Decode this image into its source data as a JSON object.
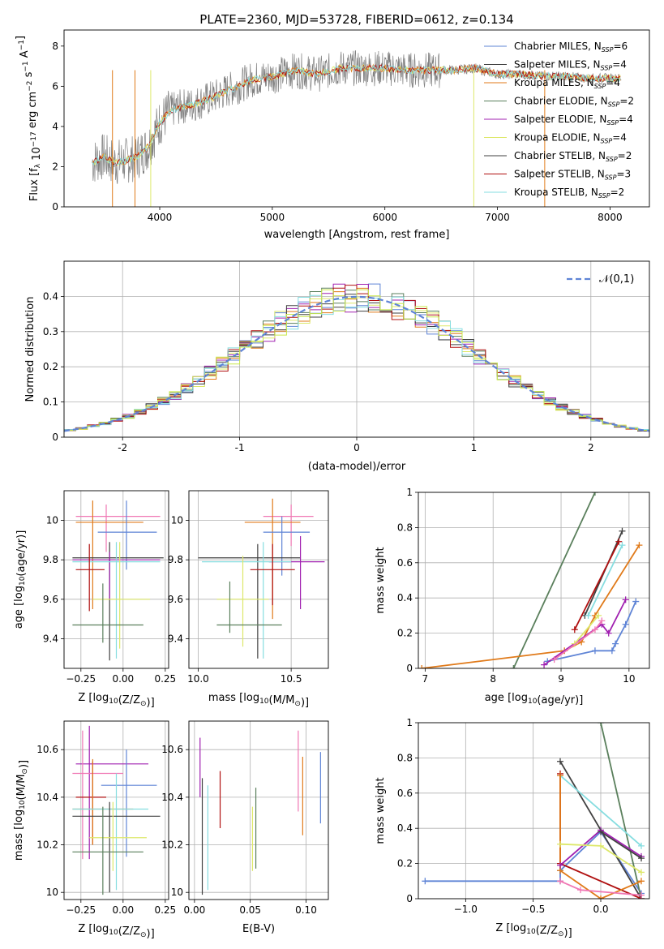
{
  "title": "PLATE=2360, MJD=53728, FIBERID=0612, z=0.134",
  "colors": {
    "royal": "#5f84d6",
    "orange": "#e07a1a",
    "green": "#5a7f5c",
    "purple": "#a020b0",
    "yellow": "#dde86a",
    "dark": "#404040",
    "red": "#b01010",
    "cyan": "#86dde0",
    "pink": "#f078b4",
    "lime": "#c8e84a",
    "grey": "#808080"
  },
  "chart_data": [
    {
      "panel": "spectrum",
      "type": "line",
      "xlabel": "wavelength [Angstrom, rest frame]",
      "ylabel": "Flux [f_λ 10^-17 erg cm^-2 s^-1 A^-1]",
      "xlim": [
        3150,
        8350
      ],
      "ylim": [
        0,
        8.8
      ],
      "xticks": [
        4000,
        5000,
        6000,
        7000,
        8000
      ],
      "yticks": [
        0,
        2,
        4,
        6,
        8
      ],
      "legend": [
        {
          "label": "Chabrier MILES, N",
          "sub": "SSP",
          "tail": "=6",
          "color": "royal"
        },
        {
          "label": "Salpeter MILES, N",
          "sub": "SSP",
          "tail": "=4",
          "color": "dark"
        },
        {
          "label": "Kroupa MILES, N",
          "sub": "SSP",
          "tail": "=4",
          "color": "orange"
        },
        {
          "label": "Chabrier ELODIE, N",
          "sub": "SSP",
          "tail": "=2",
          "color": "green"
        },
        {
          "label": "Salpeter ELODIE, N",
          "sub": "SSP",
          "tail": "=4",
          "color": "purple"
        },
        {
          "label": "Kroupa ELODIE, N",
          "sub": "SSP",
          "tail": "=4",
          "color": "yellow"
        },
        {
          "label": "Chabrier STELIB, N",
          "sub": "SSP",
          "tail": "=2",
          "color": "dark"
        },
        {
          "label": "Salpeter STELIB, N",
          "sub": "SSP",
          "tail": "=3",
          "color": "red"
        },
        {
          "label": "Kroupa STELIB, N",
          "sub": "SSP",
          "tail": "=2",
          "color": "cyan"
        }
      ],
      "model_x": [
        3400,
        3500,
        3600,
        3700,
        3800,
        3900,
        4000,
        4100,
        4200,
        4300,
        4400,
        4500,
        4600,
        4700,
        4800,
        4900,
        5000,
        5200,
        5400,
        5600,
        5800,
        6000,
        6200,
        6400,
        6600,
        6800,
        7000,
        7200,
        7400,
        7600,
        7800,
        8000,
        8100
      ],
      "model_y": [
        2.2,
        2.5,
        2.2,
        2.3,
        2.5,
        3.0,
        4.2,
        4.8,
        5.0,
        5.1,
        5.3,
        5.5,
        5.8,
        6.0,
        6.3,
        6.4,
        6.5,
        6.8,
        6.6,
        6.9,
        6.9,
        6.9,
        6.8,
        6.8,
        6.8,
        6.9,
        6.6,
        6.6,
        6.5,
        6.5,
        6.4,
        6.4,
        6.4
      ],
      "drop_lines": [
        {
          "x": 3580,
          "color": "orange"
        },
        {
          "x": 3780,
          "color": "orange"
        },
        {
          "x": 3920,
          "color": "yellow"
        },
        {
          "x": 6790,
          "color": "yellow"
        },
        {
          "x": 7420,
          "color": "orange"
        }
      ]
    },
    {
      "panel": "residuals",
      "type": "histogram",
      "xlabel": "(data-model)/error",
      "ylabel": "Normed distribution",
      "xlim": [
        -2.5,
        2.5
      ],
      "ylim": [
        0,
        0.5
      ],
      "xticks": [
        -2,
        -1,
        0,
        1,
        2
      ],
      "yticks": [
        0.0,
        0.1,
        0.2,
        0.3,
        0.4
      ],
      "gauss_label": "𝒩(0,1)",
      "bin_width": 0.1,
      "series_colors": [
        "royal",
        "orange",
        "green",
        "purple",
        "yellow",
        "dark",
        "red",
        "cyan",
        "lime"
      ]
    },
    {
      "panel": "age-vs-Z",
      "type": "errorbar",
      "xlabel": "Z [log10(Z/Z⊙)]",
      "ylabel": "age  [log10(age/yr)]",
      "xlim": [
        -0.35,
        0.27
      ],
      "ylim": [
        9.25,
        10.15
      ],
      "xticks": [
        -0.25,
        0.0,
        0.25
      ],
      "xtick_labels": [
        "−0.25",
        "0.00",
        "0.25"
      ],
      "yticks": [
        9.4,
        9.6,
        9.8,
        10.0
      ],
      "points": [
        {
          "x": -0.1,
          "xe": [
            -0.28,
            0.22
          ],
          "y": 10.02,
          "ye": [
            9.84,
            10.08
          ],
          "color": "pink"
        },
        {
          "x": -0.18,
          "xe": [
            -0.28,
            0.12
          ],
          "y": 9.99,
          "ye": [
            9.55,
            10.1
          ],
          "color": "orange"
        },
        {
          "x": 0.02,
          "xe": [
            -0.15,
            0.2
          ],
          "y": 9.94,
          "ye": [
            9.75,
            10.1
          ],
          "color": "royal"
        },
        {
          "x": -0.08,
          "xe": [
            -0.3,
            0.24
          ],
          "y": 9.81,
          "ye": [
            9.29,
            9.89
          ],
          "color": "dark"
        },
        {
          "x": -0.08,
          "xe": [
            -0.3,
            0.22
          ],
          "y": 9.8,
          "ye": [
            9.6,
            9.84
          ],
          "color": "purple"
        },
        {
          "x": -0.04,
          "xe": [
            -0.3,
            0.22
          ],
          "y": 9.79,
          "ye": [
            9.3,
            9.89
          ],
          "color": "cyan"
        },
        {
          "x": -0.2,
          "xe": [
            -0.28,
            -0.11
          ],
          "y": 9.75,
          "ye": [
            9.54,
            9.88
          ],
          "color": "red"
        },
        {
          "x": -0.02,
          "xe": [
            -0.18,
            0.16
          ],
          "y": 9.6,
          "ye": [
            9.35,
            9.89
          ],
          "color": "yellow"
        },
        {
          "x": -0.12,
          "xe": [
            -0.3,
            0.12
          ],
          "y": 9.47,
          "ye": [
            9.38,
            9.68
          ],
          "color": "green"
        }
      ]
    },
    {
      "panel": "age-vs-mass",
      "type": "errorbar",
      "xlabel": "mass [log10(M/M⊙)]",
      "ylabel": "",
      "xlim": [
        9.95,
        10.7
      ],
      "ylim": [
        9.25,
        10.15
      ],
      "xticks": [
        10.0,
        10.5
      ],
      "xtick_labels": [
        "10.0",
        "10.5"
      ],
      "yticks": [
        9.4,
        9.6,
        9.8,
        10.0
      ],
      "points": [
        {
          "x": 10.5,
          "xe": [
            10.35,
            10.62
          ],
          "y": 10.02,
          "ye": [
            9.87,
            10.08
          ],
          "color": "pink"
        },
        {
          "x": 10.4,
          "xe": [
            10.25,
            10.55
          ],
          "y": 9.99,
          "ye": [
            9.5,
            10.11
          ],
          "color": "orange"
        },
        {
          "x": 10.45,
          "xe": [
            10.35,
            10.6
          ],
          "y": 9.94,
          "ye": [
            9.72,
            10.02
          ],
          "color": "royal"
        },
        {
          "x": 10.32,
          "xe": [
            10.0,
            10.55
          ],
          "y": 9.81,
          "ye": [
            9.3,
            9.88
          ],
          "color": "dark"
        },
        {
          "x": 10.55,
          "xe": [
            10.38,
            10.68
          ],
          "y": 9.79,
          "ye": [
            9.55,
            9.92
          ],
          "color": "purple"
        },
        {
          "x": 10.35,
          "xe": [
            10.02,
            10.5
          ],
          "y": 9.79,
          "ye": [
            9.3,
            9.89
          ],
          "color": "cyan"
        },
        {
          "x": 10.4,
          "xe": [
            10.28,
            10.52
          ],
          "y": 9.75,
          "ye": [
            9.57,
            9.88
          ],
          "color": "red"
        },
        {
          "x": 10.24,
          "xe": [
            10.1,
            10.38
          ],
          "y": 9.6,
          "ye": [
            9.36,
            9.82
          ],
          "color": "yellow"
        },
        {
          "x": 10.17,
          "xe": [
            10.1,
            10.45
          ],
          "y": 9.47,
          "ye": [
            9.43,
            9.69
          ],
          "color": "green"
        }
      ]
    },
    {
      "panel": "weight-vs-age",
      "type": "line",
      "xlabel": "age  [log10(age/yr)]",
      "ylabel": "mass weight",
      "xlim": [
        6.9,
        10.3
      ],
      "ylim": [
        0,
        1.0
      ],
      "xticks": [
        7,
        8,
        9,
        10
      ],
      "yticks": [
        0.0,
        0.2,
        0.4,
        0.6,
        0.8,
        1.0
      ],
      "series": [
        {
          "color": "green",
          "x": [
            8.3,
            9.5
          ],
          "y": [
            0.0,
            1.0
          ]
        },
        {
          "color": "orange",
          "x": [
            6.95,
            9.05,
            9.3,
            9.5,
            10.15
          ],
          "y": [
            0.0,
            0.1,
            0.15,
            0.3,
            0.7
          ]
        },
        {
          "color": "royal",
          "x": [
            8.8,
            9.5,
            9.75,
            9.8,
            9.95,
            10.1
          ],
          "y": [
            0.04,
            0.1,
            0.1,
            0.14,
            0.25,
            0.38
          ]
        },
        {
          "color": "purple",
          "x": [
            8.75,
            9.6,
            9.7,
            9.95
          ],
          "y": [
            0.02,
            0.25,
            0.2,
            0.39
          ]
        },
        {
          "color": "dark",
          "x": [
            9.35,
            9.9
          ],
          "y": [
            0.3,
            0.78
          ]
        },
        {
          "color": "red",
          "x": [
            9.2,
            9.85
          ],
          "y": [
            0.22,
            0.72
          ]
        },
        {
          "color": "cyan",
          "x": [
            9.4,
            9.9
          ],
          "y": [
            0.3,
            0.7
          ]
        },
        {
          "color": "yellow",
          "x": [
            9.2,
            9.55
          ],
          "y": [
            0.14,
            0.3
          ]
        },
        {
          "color": "pink",
          "x": [
            8.9,
            9.5,
            9.6
          ],
          "y": [
            0.05,
            0.22,
            0.27
          ]
        }
      ]
    },
    {
      "panel": "mass-vs-Z",
      "type": "errorbar",
      "xlabel": "Z [log10(Z/Z⊙)]",
      "ylabel": "mass [log10(M/M⊙)]",
      "xlim": [
        -0.35,
        0.27
      ],
      "ylim": [
        9.97,
        10.72
      ],
      "xticks": [
        -0.25,
        0.0,
        0.25
      ],
      "xtick_labels": [
        "−0.25",
        "0.00",
        "0.25"
      ],
      "yticks": [
        10.0,
        10.2,
        10.4,
        10.6
      ],
      "points": [
        {
          "x": -0.2,
          "xe": [
            -0.28,
            0.15
          ],
          "y": 10.54,
          "ye": [
            10.14,
            10.7
          ],
          "color": "purple"
        },
        {
          "x": -0.24,
          "xe": [
            -0.3,
            0.0
          ],
          "y": 10.5,
          "ye": [
            10.14,
            10.68
          ],
          "color": "pink"
        },
        {
          "x": 0.02,
          "xe": [
            -0.13,
            0.2
          ],
          "y": 10.45,
          "ye": [
            10.15,
            10.6
          ],
          "color": "royal"
        },
        {
          "x": -0.18,
          "xe": [
            -0.28,
            -0.1
          ],
          "y": 10.4,
          "ye": [
            10.2,
            10.55
          ],
          "color": "red"
        },
        {
          "x": -0.18,
          "xe": [
            -0.3,
            0.06
          ],
          "y": 10.35,
          "ye": [
            10.2,
            10.56
          ],
          "color": "orange"
        },
        {
          "x": -0.04,
          "xe": [
            -0.3,
            0.15
          ],
          "y": 10.35,
          "ye": [
            10.01,
            10.5
          ],
          "color": "cyan"
        },
        {
          "x": -0.08,
          "xe": [
            -0.3,
            0.22
          ],
          "y": 10.32,
          "ye": [
            10.0,
            10.38
          ],
          "color": "dark"
        },
        {
          "x": -0.06,
          "xe": [
            -0.2,
            0.14
          ],
          "y": 10.23,
          "ye": [
            10.09,
            10.38
          ],
          "color": "yellow"
        },
        {
          "x": -0.12,
          "xe": [
            -0.3,
            0.12
          ],
          "y": 10.17,
          "ye": [
            9.99,
            10.36
          ],
          "color": "green"
        }
      ]
    },
    {
      "panel": "mass-vs-EBV",
      "type": "errorbar",
      "xlabel": "E(B-V)",
      "ylabel": "",
      "xlim": [
        -0.005,
        0.12
      ],
      "ylim": [
        9.97,
        10.72
      ],
      "xticks": [
        0.0,
        0.05,
        0.1
      ],
      "xtick_labels": [
        "0.00",
        "0.05",
        "0.10"
      ],
      "yticks": [
        10.0,
        10.2,
        10.4,
        10.6
      ],
      "points": [
        {
          "x": 0.005,
          "ye": [
            10.4,
            10.65
          ],
          "color": "purple"
        },
        {
          "x": 0.007,
          "ye": [
            9.99,
            10.48
          ],
          "color": "dark"
        },
        {
          "x": 0.012,
          "ye": [
            10.01,
            10.45
          ],
          "color": "cyan"
        },
        {
          "x": 0.023,
          "ye": [
            10.27,
            10.51
          ],
          "color": "red"
        },
        {
          "x": 0.052,
          "ye": [
            10.09,
            10.36
          ],
          "color": "yellow"
        },
        {
          "x": 0.055,
          "ye": [
            10.1,
            10.44
          ],
          "color": "green"
        },
        {
          "x": 0.093,
          "ye": [
            10.34,
            10.68
          ],
          "color": "pink"
        },
        {
          "x": 0.097,
          "ye": [
            10.24,
            10.57
          ],
          "color": "orange"
        },
        {
          "x": 0.113,
          "ye": [
            10.29,
            10.59
          ],
          "color": "royal"
        }
      ]
    },
    {
      "panel": "weight-vs-Z",
      "type": "line",
      "xlabel": "Z [log10(Z/Z⊙)]",
      "ylabel": "mass weight",
      "xlim": [
        -1.35,
        0.36
      ],
      "ylim": [
        0,
        1.0
      ],
      "xticks": [
        -1.0,
        -0.5,
        0.0
      ],
      "xtick_labels": [
        "−1.0",
        "−0.5",
        "0.0"
      ],
      "yticks": [
        0.0,
        0.2,
        0.4,
        0.6,
        0.8,
        1.0
      ],
      "series": [
        {
          "color": "royal",
          "x": [
            -1.3,
            -0.3,
            -0.3,
            0.0,
            0.3
          ],
          "y": [
            0.1,
            0.1,
            0.16,
            0.38,
            0.03
          ]
        },
        {
          "color": "green",
          "x": [
            0.0,
            0.3
          ],
          "y": [
            1.0,
            0.0
          ]
        },
        {
          "color": "dark",
          "x": [
            -0.3,
            0.3
          ],
          "y": [
            0.78,
            0.0
          ]
        },
        {
          "color": "cyan",
          "x": [
            -0.3,
            0.3
          ],
          "y": [
            0.7,
            0.3
          ]
        },
        {
          "color": "red",
          "x": [
            -0.3,
            -0.3,
            0.3
          ],
          "y": [
            0.71,
            0.2,
            0.0
          ]
        },
        {
          "color": "orange",
          "x": [
            -0.3,
            -0.3,
            0.0,
            0.3
          ],
          "y": [
            0.7,
            0.16,
            0.0,
            0.1
          ]
        },
        {
          "color": "purple",
          "x": [
            -0.3,
            0.0,
            0.3
          ],
          "y": [
            0.19,
            0.39,
            0.24
          ]
        },
        {
          "color": "yellow",
          "x": [
            -0.3,
            0.0,
            0.3
          ],
          "y": [
            0.31,
            0.3,
            0.15
          ]
        },
        {
          "color": "pink",
          "x": [
            -0.3,
            -0.15,
            0.3
          ],
          "y": [
            0.1,
            0.05,
            0.02
          ]
        },
        {
          "color": "dark",
          "x": [
            0.0,
            0.3
          ],
          "y": [
            0.38,
            0.23
          ]
        }
      ]
    }
  ]
}
